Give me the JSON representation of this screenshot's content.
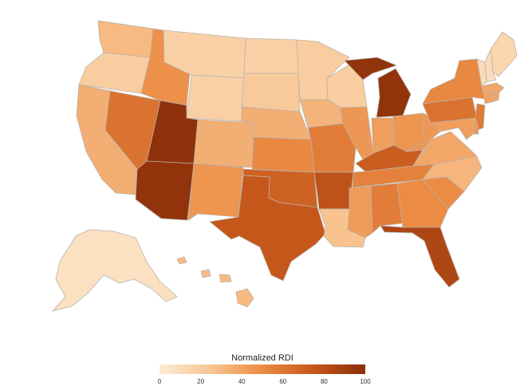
{
  "map": {
    "title": "",
    "regions": [
      {
        "id": "WA",
        "value": 30
      },
      {
        "id": "OR",
        "value": 20
      },
      {
        "id": "CA",
        "value": 35
      },
      {
        "id": "NV",
        "value": 62
      },
      {
        "id": "ID",
        "value": 48
      },
      {
        "id": "MT",
        "value": 18
      },
      {
        "id": "WY",
        "value": 18
      },
      {
        "id": "UT",
        "value": 98
      },
      {
        "id": "AZ",
        "value": 97
      },
      {
        "id": "CO",
        "value": 35
      },
      {
        "id": "NM",
        "value": 46
      },
      {
        "id": "ND",
        "value": 18
      },
      {
        "id": "SD",
        "value": 22
      },
      {
        "id": "NE",
        "value": 35
      },
      {
        "id": "KS",
        "value": 52
      },
      {
        "id": "OK",
        "value": 70
      },
      {
        "id": "TX",
        "value": 75
      },
      {
        "id": "MN",
        "value": 20
      },
      {
        "id": "IA",
        "value": 33
      },
      {
        "id": "MO",
        "value": 57
      },
      {
        "id": "AR",
        "value": 78
      },
      {
        "id": "LA",
        "value": 26
      },
      {
        "id": "WI",
        "value": 20
      },
      {
        "id": "IL",
        "value": 45
      },
      {
        "id": "MI",
        "value": 97
      },
      {
        "id": "IN",
        "value": 42
      },
      {
        "id": "OH",
        "value": 46
      },
      {
        "id": "KY",
        "value": 72
      },
      {
        "id": "TN",
        "value": 55
      },
      {
        "id": "MS",
        "value": 43
      },
      {
        "id": "AL",
        "value": 57
      },
      {
        "id": "GA",
        "value": 50
      },
      {
        "id": "FL",
        "value": 85
      },
      {
        "id": "SC",
        "value": 50
      },
      {
        "id": "NC",
        "value": 32
      },
      {
        "id": "VA",
        "value": 38
      },
      {
        "id": "WV",
        "value": 45
      },
      {
        "id": "PA",
        "value": 62
      },
      {
        "id": "NY",
        "value": 52
      },
      {
        "id": "ME",
        "value": 15
      },
      {
        "id": "NH",
        "value": 10
      },
      {
        "id": "VT",
        "value": 10
      },
      {
        "id": "MA",
        "value": 38
      },
      {
        "id": "CT",
        "value": 40
      },
      {
        "id": "RI",
        "value": 38
      },
      {
        "id": "NJ",
        "value": 58
      },
      {
        "id": "DE",
        "value": 45
      },
      {
        "id": "MD",
        "value": 42
      },
      {
        "id": "AK",
        "value": 8
      },
      {
        "id": "HI",
        "value": 30
      }
    ]
  },
  "legend": {
    "title": "Normalized RDI",
    "min": 0,
    "max": 100,
    "ticks": [
      "0",
      "20",
      "40",
      "60",
      "80",
      "100"
    ],
    "colors": [
      "#fcecd9",
      "#f8c592",
      "#ec8c44",
      "#c6571b",
      "#8a2e09"
    ]
  }
}
